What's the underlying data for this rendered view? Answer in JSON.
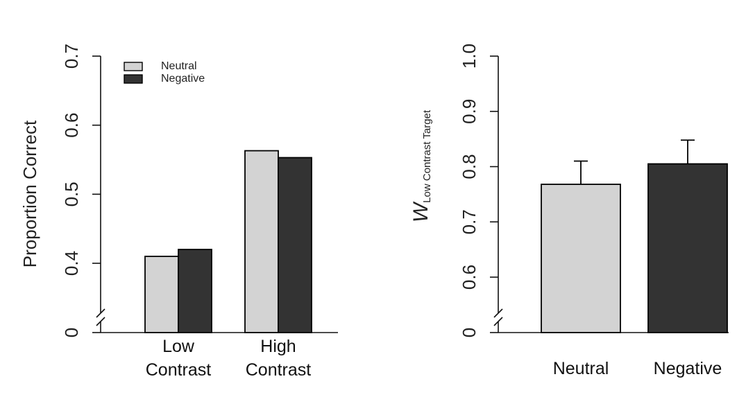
{
  "chart_data": [
    {
      "type": "bar",
      "categories": [
        "Low\nContrast",
        "High\nContrast"
      ],
      "series": [
        {
          "name": "Neutral",
          "values": [
            0.41,
            0.563
          ]
        },
        {
          "name": "Negative",
          "values": [
            0.42,
            0.553
          ]
        }
      ],
      "ylabel": "Proportion Correct",
      "yticks": [
        "0",
        "0.4",
        "0.5",
        "0.6",
        "0.7"
      ],
      "ylim": [
        0.4,
        0.7
      ],
      "axis_break": true,
      "legend": "top-left",
      "grid": false
    },
    {
      "type": "bar",
      "categories": [
        "Neutral",
        "Negative"
      ],
      "values": [
        0.768,
        0.805
      ],
      "error_upper": [
        0.81,
        0.848
      ],
      "ylabel_main": "W",
      "ylabel_sub": "Low  Contrast  Target",
      "yticks": [
        "0",
        "0.6",
        "0.7",
        "0.8",
        "0.9",
        "1.0"
      ],
      "ylim": [
        0.6,
        1.0
      ],
      "axis_break": true,
      "grid": false
    }
  ],
  "colors": {
    "neutral": "#d3d3d3",
    "negative": "#333333"
  }
}
